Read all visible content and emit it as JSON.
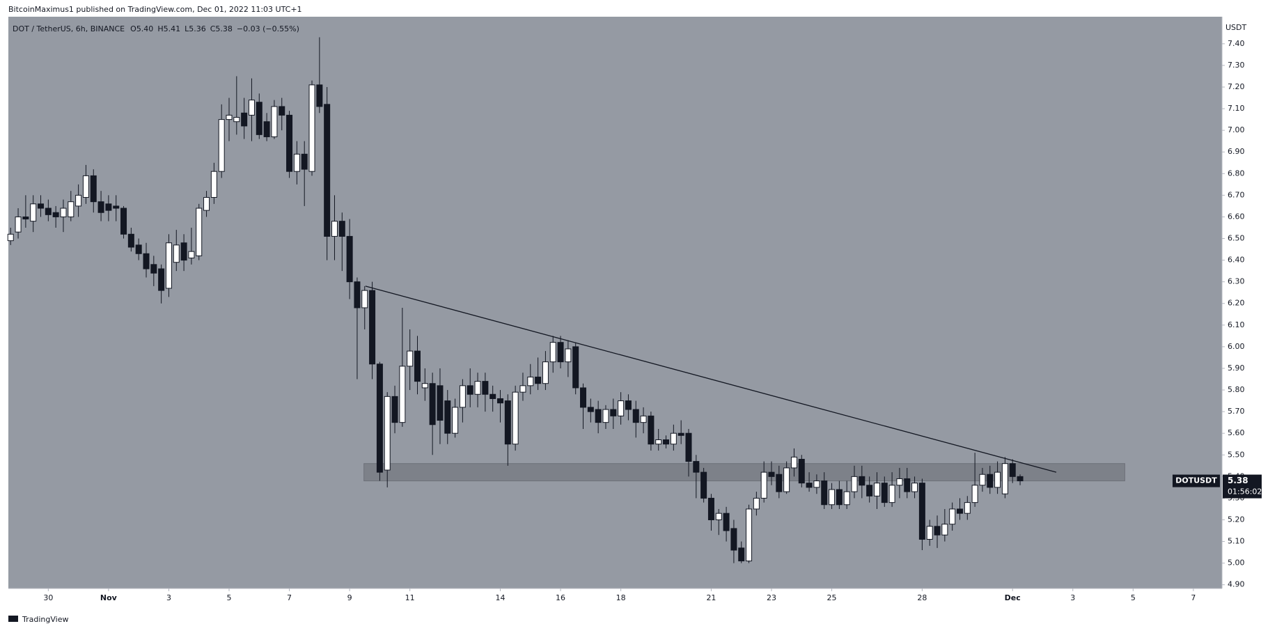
{
  "header": {
    "publisher": "BitcoinMaximus1 published on TradingView.com, Dec 01, 2022 11:03 UTC+1"
  },
  "footer": {
    "brand": "TradingView"
  },
  "chart_data": {
    "type": "candlestick",
    "legend": {
      "symbol": "DOT / TetherUS, 6h, BINANCE",
      "ohlc": [
        {
          "key": "O",
          "value": "5.40"
        },
        {
          "key": "H",
          "value": "5.41"
        },
        {
          "key": "L",
          "value": "5.36"
        },
        {
          "key": "C",
          "value": "5.38"
        }
      ],
      "change": "−0.03 (−0.55%)"
    },
    "y_axis_unit": "USDT",
    "symbol_tag": "DOTUSDT",
    "countdown": "01:56:02",
    "up_color": "#ffffff",
    "down_color": "#131722",
    "background": "#959aa3",
    "candles": [
      [
        6.49,
        6.55,
        6.47,
        6.52
      ],
      [
        6.53,
        6.64,
        6.5,
        6.6
      ],
      [
        6.6,
        6.7,
        6.55,
        6.59
      ],
      [
        6.58,
        6.7,
        6.53,
        6.66
      ],
      [
        6.66,
        6.7,
        6.6,
        6.64
      ],
      [
        6.64,
        6.68,
        6.58,
        6.61
      ],
      [
        6.62,
        6.65,
        6.55,
        6.6
      ],
      [
        6.6,
        6.68,
        6.53,
        6.64
      ],
      [
        6.6,
        6.72,
        6.58,
        6.67
      ],
      [
        6.65,
        6.75,
        6.6,
        6.7
      ],
      [
        6.69,
        6.84,
        6.66,
        6.79
      ],
      [
        6.79,
        6.82,
        6.62,
        6.67
      ],
      [
        6.67,
        6.72,
        6.58,
        6.62
      ],
      [
        6.66,
        6.7,
        6.58,
        6.63
      ],
      [
        6.65,
        6.7,
        6.58,
        6.64
      ],
      [
        6.64,
        6.65,
        6.5,
        6.52
      ],
      [
        6.52,
        6.55,
        6.44,
        6.46
      ],
      [
        6.47,
        6.5,
        6.4,
        6.43
      ],
      [
        6.43,
        6.48,
        6.32,
        6.36
      ],
      [
        6.38,
        6.42,
        6.28,
        6.34
      ],
      [
        6.36,
        6.38,
        6.2,
        6.26
      ],
      [
        6.27,
        6.52,
        6.23,
        6.48
      ],
      [
        6.39,
        6.54,
        6.35,
        6.47
      ],
      [
        6.48,
        6.52,
        6.35,
        6.4
      ],
      [
        6.41,
        6.55,
        6.38,
        6.44
      ],
      [
        6.42,
        6.66,
        6.4,
        6.64
      ],
      [
        6.63,
        6.72,
        6.6,
        6.69
      ],
      [
        6.69,
        6.85,
        6.66,
        6.81
      ],
      [
        6.81,
        7.12,
        6.78,
        7.05
      ],
      [
        7.05,
        7.15,
        6.95,
        7.07
      ],
      [
        7.04,
        7.25,
        6.98,
        7.06
      ],
      [
        7.08,
        7.15,
        6.96,
        7.02
      ],
      [
        7.07,
        7.24,
        6.95,
        7.14
      ],
      [
        7.13,
        7.17,
        6.96,
        6.98
      ],
      [
        7.04,
        7.08,
        6.95,
        6.97
      ],
      [
        6.97,
        7.14,
        6.96,
        7.11
      ],
      [
        7.11,
        7.15,
        7.0,
        7.07
      ],
      [
        7.07,
        7.09,
        6.78,
        6.81
      ],
      [
        6.81,
        6.95,
        6.75,
        6.89
      ],
      [
        6.89,
        6.95,
        6.65,
        6.82
      ],
      [
        6.81,
        7.23,
        6.79,
        7.21
      ],
      [
        7.21,
        7.43,
        7.08,
        7.11
      ],
      [
        7.12,
        7.2,
        6.4,
        6.51
      ],
      [
        6.51,
        6.7,
        6.4,
        6.58
      ],
      [
        6.58,
        6.62,
        6.35,
        6.51
      ],
      [
        6.51,
        6.59,
        6.22,
        6.3
      ],
      [
        6.3,
        6.32,
        5.85,
        6.18
      ],
      [
        6.18,
        6.28,
        6.08,
        6.26
      ],
      [
        6.26,
        6.3,
        5.85,
        5.92
      ],
      [
        5.92,
        5.93,
        5.38,
        5.42
      ],
      [
        5.43,
        5.79,
        5.35,
        5.77
      ],
      [
        5.77,
        5.82,
        5.6,
        5.65
      ],
      [
        5.65,
        6.18,
        5.63,
        5.91
      ],
      [
        5.91,
        6.08,
        5.8,
        5.98
      ],
      [
        5.98,
        6.05,
        5.78,
        5.84
      ],
      [
        5.81,
        5.9,
        5.75,
        5.83
      ],
      [
        5.83,
        5.88,
        5.5,
        5.64
      ],
      [
        5.82,
        5.9,
        5.55,
        5.66
      ],
      [
        5.75,
        5.8,
        5.55,
        5.6
      ],
      [
        5.6,
        5.76,
        5.58,
        5.72
      ],
      [
        5.72,
        5.85,
        5.65,
        5.82
      ],
      [
        5.82,
        5.9,
        5.72,
        5.78
      ],
      [
        5.78,
        5.88,
        5.72,
        5.84
      ],
      [
        5.84,
        5.88,
        5.7,
        5.78
      ],
      [
        5.78,
        5.82,
        5.7,
        5.76
      ],
      [
        5.76,
        5.8,
        5.65,
        5.74
      ],
      [
        5.75,
        5.78,
        5.45,
        5.55
      ],
      [
        5.55,
        5.82,
        5.52,
        5.79
      ],
      [
        5.79,
        5.88,
        5.75,
        5.82
      ],
      [
        5.82,
        5.92,
        5.78,
        5.86
      ],
      [
        5.86,
        5.95,
        5.8,
        5.83
      ],
      [
        5.83,
        5.98,
        5.8,
        5.93
      ],
      [
        5.93,
        6.05,
        5.88,
        6.02
      ],
      [
        6.02,
        6.05,
        5.9,
        5.93
      ],
      [
        5.93,
        6.03,
        5.86,
        5.99
      ],
      [
        6.0,
        6.02,
        5.78,
        5.81
      ],
      [
        5.81,
        5.83,
        5.62,
        5.72
      ],
      [
        5.72,
        5.76,
        5.65,
        5.7
      ],
      [
        5.71,
        5.75,
        5.6,
        5.65
      ],
      [
        5.65,
        5.73,
        5.62,
        5.71
      ],
      [
        5.71,
        5.76,
        5.62,
        5.68
      ],
      [
        5.68,
        5.79,
        5.64,
        5.75
      ],
      [
        5.75,
        5.78,
        5.66,
        5.71
      ],
      [
        5.71,
        5.75,
        5.58,
        5.65
      ],
      [
        5.65,
        5.72,
        5.6,
        5.68
      ],
      [
        5.68,
        5.7,
        5.52,
        5.55
      ],
      [
        5.55,
        5.62,
        5.52,
        5.57
      ],
      [
        5.57,
        5.59,
        5.53,
        5.55
      ],
      [
        5.55,
        5.64,
        5.52,
        5.6
      ],
      [
        5.6,
        5.66,
        5.55,
        5.59
      ],
      [
        5.6,
        5.62,
        5.4,
        5.47
      ],
      [
        5.47,
        5.5,
        5.3,
        5.42
      ],
      [
        5.42,
        5.44,
        5.28,
        5.3
      ],
      [
        5.3,
        5.32,
        5.15,
        5.2
      ],
      [
        5.2,
        5.25,
        5.13,
        5.23
      ],
      [
        5.23,
        5.26,
        5.1,
        5.15
      ],
      [
        5.16,
        5.2,
        5.0,
        5.06
      ],
      [
        5.07,
        5.1,
        5.0,
        5.01
      ],
      [
        5.01,
        5.27,
        5.0,
        5.25
      ],
      [
        5.25,
        5.33,
        5.22,
        5.3
      ],
      [
        5.3,
        5.47,
        5.28,
        5.42
      ],
      [
        5.42,
        5.47,
        5.36,
        5.4
      ],
      [
        5.41,
        5.45,
        5.3,
        5.33
      ],
      [
        5.33,
        5.47,
        5.32,
        5.44
      ],
      [
        5.44,
        5.53,
        5.4,
        5.49
      ],
      [
        5.48,
        5.5,
        5.35,
        5.37
      ],
      [
        5.37,
        5.42,
        5.33,
        5.35
      ],
      [
        5.35,
        5.41,
        5.32,
        5.38
      ],
      [
        5.38,
        5.42,
        5.25,
        5.27
      ],
      [
        5.27,
        5.37,
        5.25,
        5.34
      ],
      [
        5.34,
        5.38,
        5.25,
        5.27
      ],
      [
        5.27,
        5.38,
        5.25,
        5.33
      ],
      [
        5.33,
        5.45,
        5.3,
        5.4
      ],
      [
        5.4,
        5.45,
        5.3,
        5.36
      ],
      [
        5.36,
        5.4,
        5.28,
        5.31
      ],
      [
        5.31,
        5.42,
        5.25,
        5.37
      ],
      [
        5.37,
        5.4,
        5.26,
        5.28
      ],
      [
        5.28,
        5.42,
        5.26,
        5.36
      ],
      [
        5.36,
        5.44,
        5.3,
        5.39
      ],
      [
        5.39,
        5.44,
        5.3,
        5.33
      ],
      [
        5.33,
        5.4,
        5.3,
        5.37
      ],
      [
        5.37,
        5.39,
        5.06,
        5.11
      ],
      [
        5.11,
        5.2,
        5.08,
        5.17
      ],
      [
        5.17,
        5.22,
        5.07,
        5.13
      ],
      [
        5.13,
        5.25,
        5.1,
        5.18
      ],
      [
        5.18,
        5.28,
        5.15,
        5.25
      ],
      [
        5.25,
        5.3,
        5.2,
        5.23
      ],
      [
        5.23,
        5.31,
        5.2,
        5.28
      ],
      [
        5.28,
        5.51,
        5.26,
        5.36
      ],
      [
        5.36,
        5.44,
        5.33,
        5.41
      ],
      [
        5.41,
        5.45,
        5.32,
        5.35
      ],
      [
        5.35,
        5.47,
        5.32,
        5.42
      ],
      [
        5.32,
        5.49,
        5.3,
        5.46
      ],
      [
        5.46,
        5.48,
        5.37,
        5.4
      ],
      [
        5.4,
        5.41,
        5.36,
        5.38
      ]
    ],
    "trendline": [
      {
        "x": 47.1,
        "y": 6.28
      },
      {
        "x": 138.8,
        "y": 5.42
      }
    ],
    "zone": {
      "x": [
        46.9,
        147.9
      ],
      "y": [
        5.38,
        5.46
      ]
    },
    "xlim": [
      -0.3,
      160.8
    ],
    "ylim": [
      4.883,
      7.525
    ],
    "xticks": [
      {
        "value": 5,
        "label": "30"
      },
      {
        "value": 13,
        "label": "Nov"
      },
      {
        "value": 21,
        "label": "3"
      },
      {
        "value": 29,
        "label": "5"
      },
      {
        "value": 37,
        "label": "7"
      },
      {
        "value": 45,
        "label": "9"
      },
      {
        "value": 53,
        "label": "11"
      },
      {
        "value": 65,
        "label": "14"
      },
      {
        "value": 73,
        "label": "16"
      },
      {
        "value": 81,
        "label": "18"
      },
      {
        "value": 93,
        "label": "21"
      },
      {
        "value": 101,
        "label": "23"
      },
      {
        "value": 109,
        "label": "25"
      },
      {
        "value": 121,
        "label": "28"
      },
      {
        "value": 133,
        "label": "Dec"
      },
      {
        "value": 141,
        "label": "3"
      },
      {
        "value": 149,
        "label": "5"
      },
      {
        "value": 157,
        "label": "7"
      }
    ],
    "yticks": [
      {
        "value": 4.9,
        "label": "4.90"
      },
      {
        "value": 5.0,
        "label": "5.00"
      },
      {
        "value": 5.1,
        "label": "5.10"
      },
      {
        "value": 5.2,
        "label": "5.20"
      },
      {
        "value": 5.3,
        "label": "5.30"
      },
      {
        "value": 5.4,
        "label": "5.40"
      },
      {
        "value": 5.5,
        "label": "5.50"
      },
      {
        "value": 5.6,
        "label": "5.60"
      },
      {
        "value": 5.7,
        "label": "5.70"
      },
      {
        "value": 5.8,
        "label": "5.80"
      },
      {
        "value": 5.9,
        "label": "5.90"
      },
      {
        "value": 6.0,
        "label": "6.00"
      },
      {
        "value": 6.1,
        "label": "6.10"
      },
      {
        "value": 6.2,
        "label": "6.20"
      },
      {
        "value": 6.3,
        "label": "6.30"
      },
      {
        "value": 6.4,
        "label": "6.40"
      },
      {
        "value": 6.5,
        "label": "6.50"
      },
      {
        "value": 6.6,
        "label": "6.60"
      },
      {
        "value": 6.7,
        "label": "6.70"
      },
      {
        "value": 6.8,
        "label": "6.80"
      },
      {
        "value": 6.9,
        "label": "6.90"
      },
      {
        "value": 7.0,
        "label": "7.00"
      },
      {
        "value": 7.1,
        "label": "7.10"
      },
      {
        "value": 7.2,
        "label": "7.20"
      },
      {
        "value": 7.3,
        "label": "7.30"
      },
      {
        "value": 7.4,
        "label": "7.40"
      }
    ]
  }
}
